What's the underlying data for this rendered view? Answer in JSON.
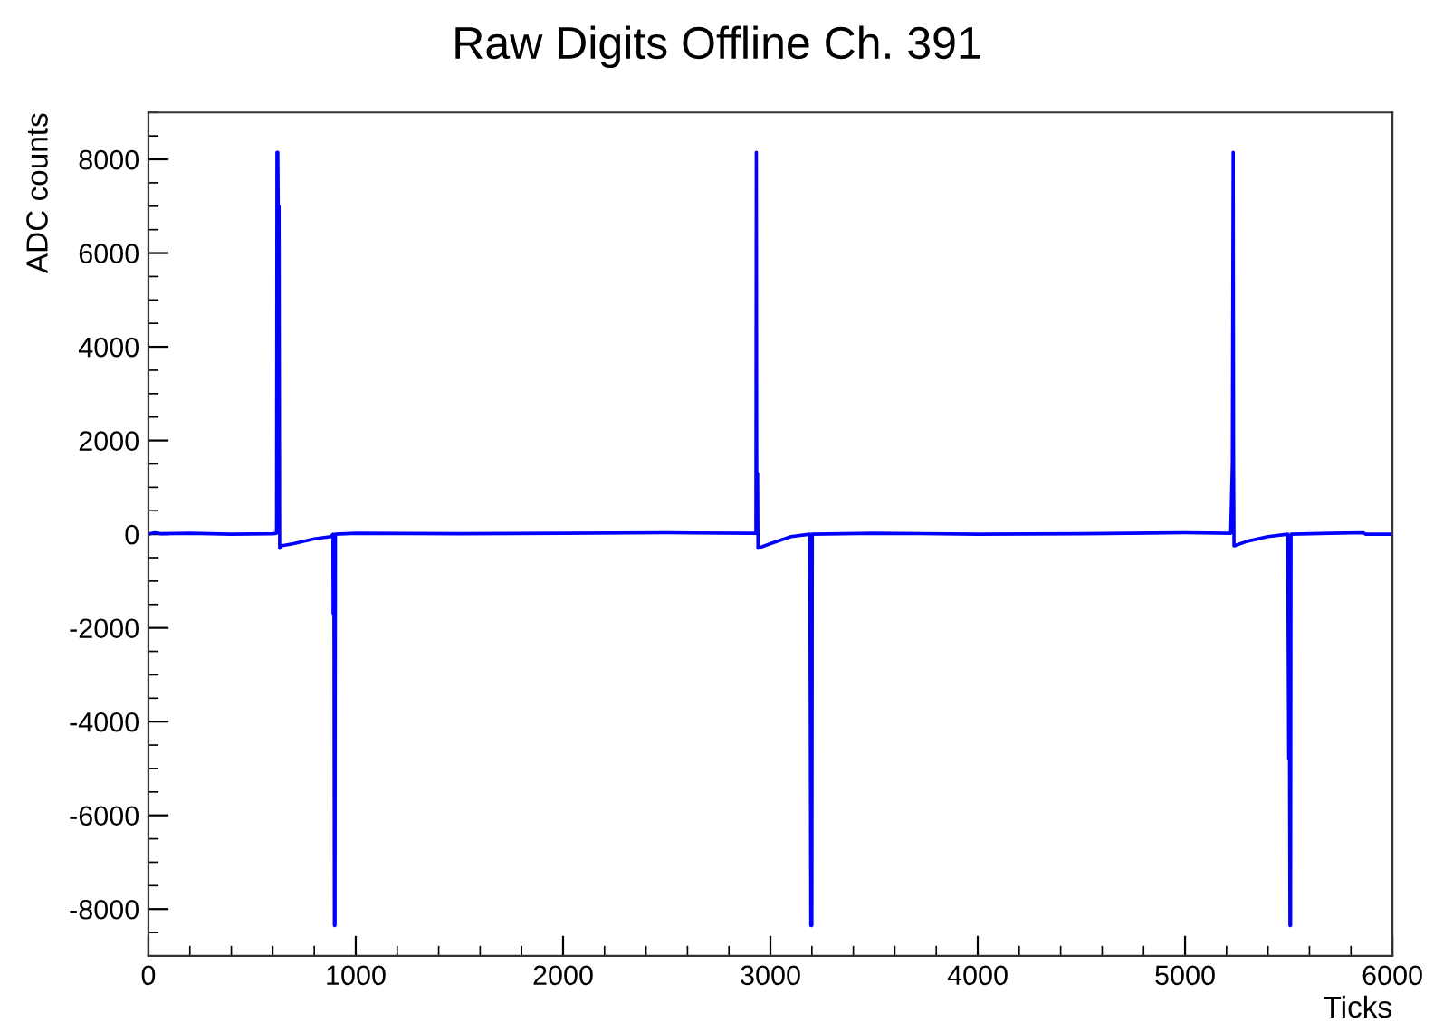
{
  "chart_data": {
    "type": "line",
    "title": "Raw Digits Offline Ch. 391",
    "xlabel": "Ticks",
    "ylabel": "ADC counts",
    "xlim": [
      0,
      6000
    ],
    "xticks": [
      0,
      1000,
      2000,
      3000,
      4000,
      5000,
      6000
    ],
    "ylim": [
      -9000,
      9000
    ],
    "yticks": [
      -8000,
      -6000,
      -4000,
      -2000,
      0,
      2000,
      4000,
      6000,
      8000
    ],
    "grid": false,
    "legend": false,
    "marker": "none",
    "line_style": "solid",
    "series": [
      {
        "color": "#0000ff",
        "x": [
          0,
          30,
          60,
          200,
          400,
          600,
          618,
          620,
          624,
          626,
          630,
          633,
          640,
          700,
          800,
          880,
          890,
          891,
          895,
          897,
          900,
          902,
          1000,
          1500,
          2000,
          2500,
          2900,
          2930,
          2932,
          2934,
          2938,
          2940,
          3000,
          3100,
          3190,
          3195,
          3200,
          3202,
          3500,
          4000,
          4500,
          5000,
          5220,
          5228,
          5232,
          5234,
          5236,
          5300,
          5400,
          5495,
          5500,
          5504,
          5506,
          5509,
          5511,
          5700,
          5860,
          5870,
          6000
        ],
        "values": [
          0,
          30,
          10,
          20,
          0,
          10,
          20,
          8150,
          8150,
          7000,
          7000,
          -300,
          -250,
          -200,
          -100,
          -50,
          0,
          -1700,
          -1700,
          -8350,
          -8350,
          0,
          20,
          10,
          20,
          30,
          20,
          20,
          8150,
          1300,
          1300,
          -300,
          -200,
          -50,
          0,
          -8350,
          -8350,
          0,
          20,
          0,
          10,
          30,
          20,
          1500,
          8150,
          1500,
          -250,
          -150,
          -50,
          0,
          -4800,
          -4800,
          -8350,
          -8350,
          0,
          20,
          30,
          0,
          0
        ]
      }
    ]
  }
}
